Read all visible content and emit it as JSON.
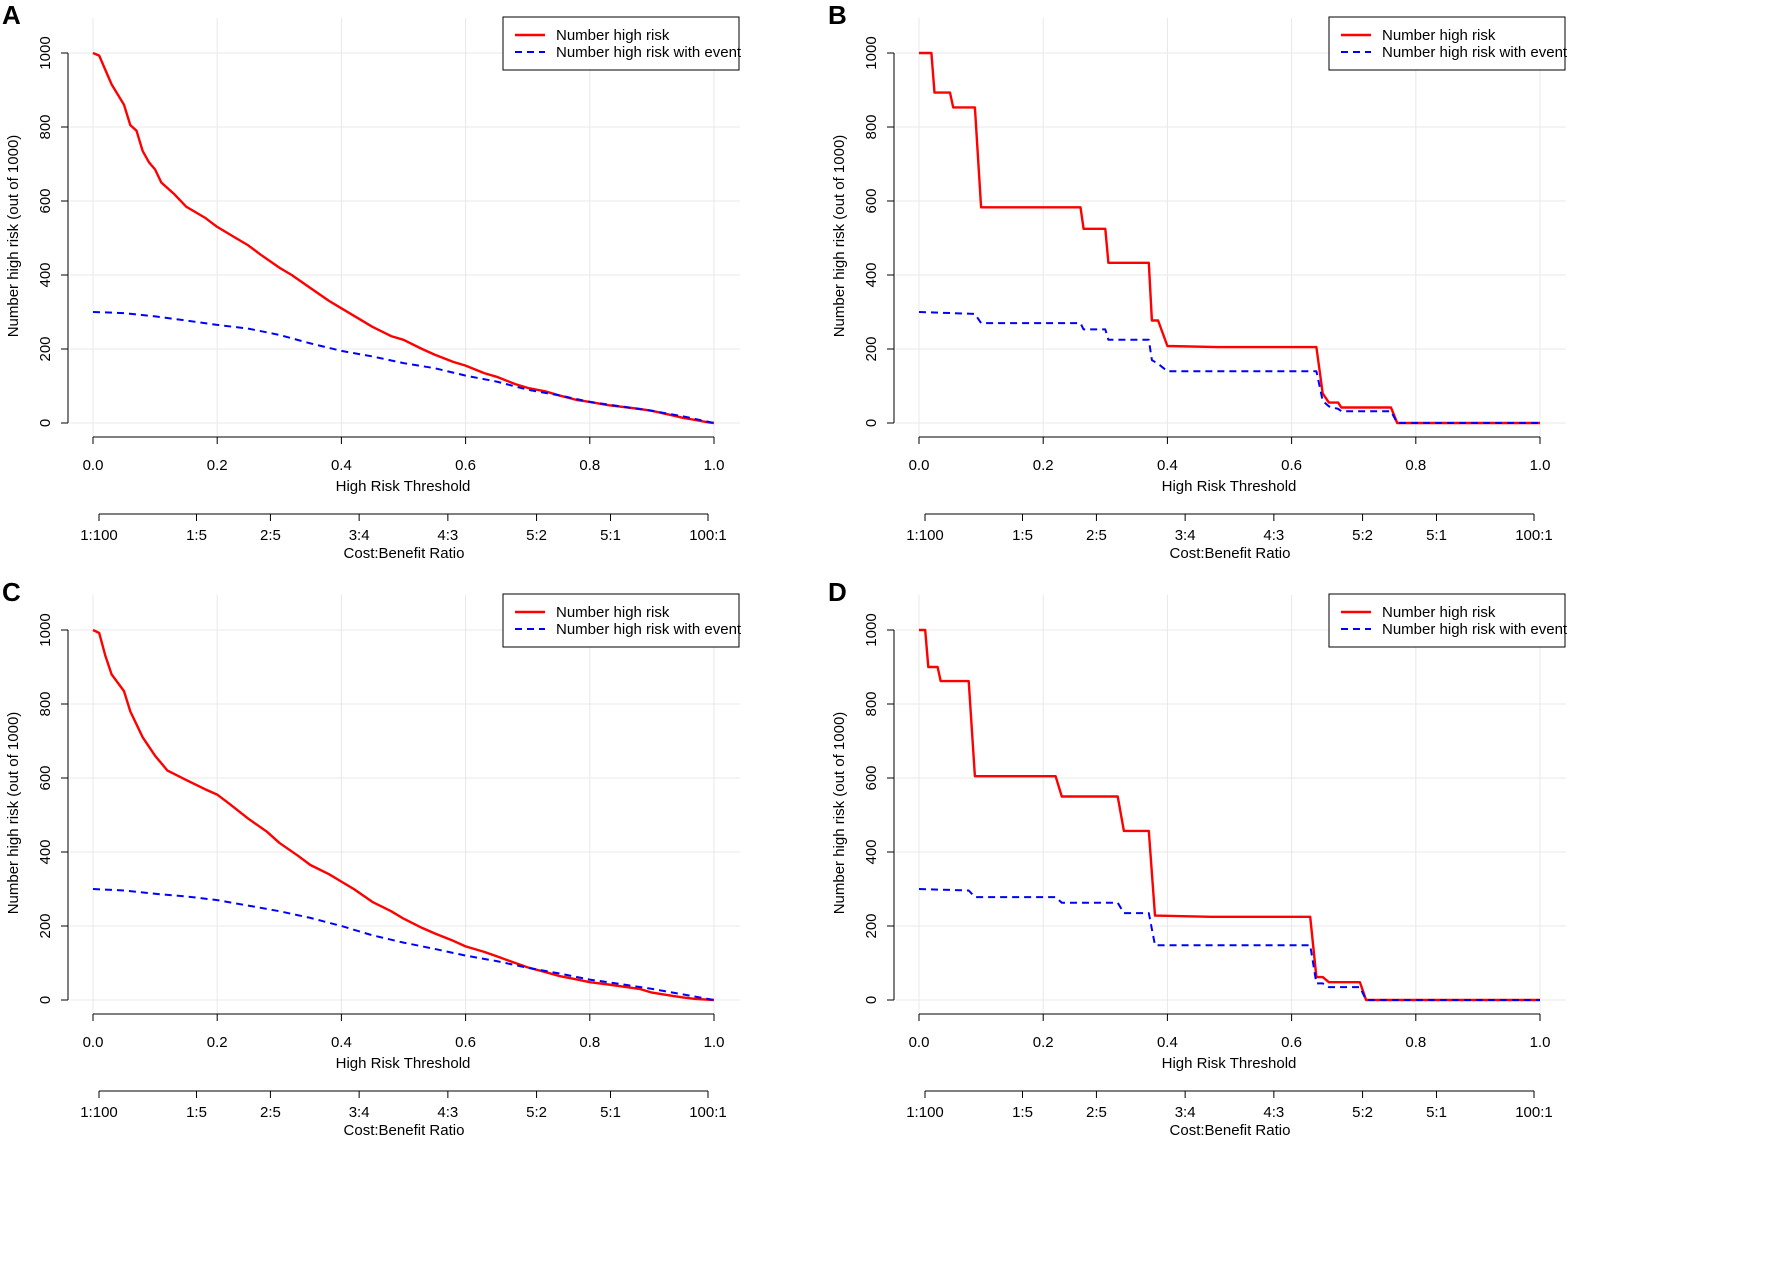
{
  "chart_data": [
    {
      "type": "line",
      "panel_label": "A",
      "xlabel": "High Risk Threshold",
      "ylabel": "Number high risk (out of 1000)",
      "xlim": [
        0,
        1
      ],
      "ylim": [
        0,
        1000
      ],
      "x_ticks": [
        "0.0",
        "0.2",
        "0.4",
        "0.6",
        "0.8",
        "1.0"
      ],
      "y_ticks": [
        "0",
        "200",
        "400",
        "600",
        "800",
        "1000"
      ],
      "secondary_axis": {
        "title": "Cost:Benefit Ratio",
        "ticks": [
          "1:100",
          "1:5",
          "2:5",
          "3:4",
          "4:3",
          "5:2",
          "5:1",
          "100:1"
        ]
      },
      "grid": true,
      "legend": {
        "position": "top-right",
        "entries": [
          "Number high risk",
          "Number high risk with event"
        ]
      },
      "series": [
        {
          "name": "Number high risk",
          "color": "#ff0000",
          "style": "solid",
          "x": [
            0,
            0.01,
            0.03,
            0.05,
            0.06,
            0.07,
            0.08,
            0.09,
            0.1,
            0.11,
            0.13,
            0.15,
            0.18,
            0.2,
            0.23,
            0.25,
            0.27,
            0.3,
            0.32,
            0.35,
            0.38,
            0.4,
            0.42,
            0.45,
            0.48,
            0.5,
            0.53,
            0.55,
            0.58,
            0.6,
            0.63,
            0.65,
            0.68,
            0.7,
            0.73,
            0.75,
            0.78,
            0.8,
            0.83,
            0.85,
            0.88,
            0.9,
            0.93,
            0.95,
            0.97,
            0.99,
            1.0
          ],
          "y": [
            1000,
            993,
            915,
            860,
            805,
            790,
            735,
            705,
            685,
            650,
            620,
            585,
            555,
            530,
            500,
            480,
            455,
            420,
            400,
            365,
            330,
            310,
            290,
            260,
            235,
            225,
            200,
            185,
            165,
            155,
            135,
            125,
            105,
            95,
            85,
            75,
            62,
            57,
            48,
            44,
            38,
            33,
            22,
            14,
            8,
            2,
            0
          ]
        },
        {
          "name": "Number high risk with event",
          "color": "#0000ff",
          "style": "dashed",
          "x": [
            0,
            0.05,
            0.1,
            0.15,
            0.2,
            0.25,
            0.3,
            0.35,
            0.4,
            0.45,
            0.5,
            0.55,
            0.6,
            0.65,
            0.7,
            0.75,
            0.8,
            0.85,
            0.9,
            0.95,
            1.0
          ],
          "y": [
            300,
            297,
            288,
            277,
            265,
            255,
            238,
            215,
            195,
            180,
            162,
            148,
            128,
            112,
            90,
            75,
            57,
            45,
            33,
            18,
            0
          ]
        }
      ]
    },
    {
      "type": "line",
      "panel_label": "B",
      "xlabel": "High Risk Threshold",
      "ylabel": "Number high risk (out of 1000)",
      "xlim": [
        0,
        1
      ],
      "ylim": [
        0,
        1000
      ],
      "x_ticks": [
        "0.0",
        "0.2",
        "0.4",
        "0.6",
        "0.8",
        "1.0"
      ],
      "y_ticks": [
        "0",
        "200",
        "400",
        "600",
        "800",
        "1000"
      ],
      "secondary_axis": {
        "title": "Cost:Benefit Ratio",
        "ticks": [
          "1:100",
          "1:5",
          "2:5",
          "3:4",
          "4:3",
          "5:2",
          "5:1",
          "100:1"
        ]
      },
      "grid": true,
      "legend": {
        "position": "top-right",
        "entries": [
          "Number high risk",
          "Number high risk with event"
        ]
      },
      "series": [
        {
          "name": "Number high risk",
          "color": "#ff0000",
          "style": "solid",
          "x": [
            0,
            0.02,
            0.025,
            0.05,
            0.055,
            0.09,
            0.1,
            0.26,
            0.265,
            0.3,
            0.305,
            0.37,
            0.375,
            0.385,
            0.4,
            0.48,
            0.64,
            0.65,
            0.66,
            0.675,
            0.68,
            0.76,
            0.77,
            1.0
          ],
          "y": [
            1000,
            1000,
            893,
            893,
            853,
            853,
            583,
            583,
            525,
            525,
            433,
            433,
            277,
            277,
            208,
            205,
            205,
            80,
            55,
            55,
            42,
            42,
            0,
            0
          ]
        },
        {
          "name": "Number high risk with event",
          "color": "#0000ff",
          "style": "dashed",
          "x": [
            0,
            0.09,
            0.1,
            0.26,
            0.265,
            0.3,
            0.305,
            0.37,
            0.375,
            0.385,
            0.4,
            0.64,
            0.65,
            0.66,
            0.675,
            0.68,
            0.76,
            0.77,
            1.0
          ],
          "y": [
            300,
            295,
            270,
            270,
            253,
            253,
            225,
            225,
            170,
            160,
            140,
            140,
            60,
            45,
            38,
            32,
            32,
            0,
            0
          ]
        }
      ]
    },
    {
      "type": "line",
      "panel_label": "C",
      "xlabel": "High Risk Threshold",
      "ylabel": "Number high risk (out of 1000)",
      "xlim": [
        0,
        1
      ],
      "ylim": [
        0,
        1000
      ],
      "x_ticks": [
        "0.0",
        "0.2",
        "0.4",
        "0.6",
        "0.8",
        "1.0"
      ],
      "y_ticks": [
        "0",
        "200",
        "400",
        "600",
        "800",
        "1000"
      ],
      "secondary_axis": {
        "title": "Cost:Benefit Ratio",
        "ticks": [
          "1:100",
          "1:5",
          "2:5",
          "3:4",
          "4:3",
          "5:2",
          "5:1",
          "100:1"
        ]
      },
      "grid": true,
      "legend": {
        "position": "top-right",
        "entries": [
          "Number high risk",
          "Number high risk with event"
        ]
      },
      "series": [
        {
          "name": "Number high risk",
          "color": "#ff0000",
          "style": "solid",
          "x": [
            0,
            0.01,
            0.02,
            0.03,
            0.05,
            0.06,
            0.08,
            0.1,
            0.12,
            0.15,
            0.18,
            0.2,
            0.22,
            0.25,
            0.28,
            0.3,
            0.33,
            0.35,
            0.38,
            0.4,
            0.42,
            0.45,
            0.48,
            0.5,
            0.53,
            0.55,
            0.58,
            0.6,
            0.63,
            0.65,
            0.68,
            0.7,
            0.73,
            0.75,
            0.78,
            0.8,
            0.83,
            0.85,
            0.88,
            0.9,
            0.93,
            0.95,
            0.97,
            1.0
          ],
          "y": [
            1000,
            992,
            930,
            880,
            835,
            780,
            710,
            660,
            620,
            595,
            570,
            555,
            530,
            490,
            455,
            425,
            390,
            365,
            340,
            320,
            300,
            265,
            240,
            220,
            195,
            180,
            160,
            145,
            130,
            118,
            100,
            88,
            75,
            65,
            55,
            48,
            42,
            37,
            30,
            20,
            12,
            7,
            3,
            0
          ]
        },
        {
          "name": "Number high risk with event",
          "color": "#0000ff",
          "style": "dashed",
          "x": [
            0,
            0.05,
            0.1,
            0.15,
            0.2,
            0.25,
            0.3,
            0.35,
            0.4,
            0.45,
            0.5,
            0.55,
            0.6,
            0.65,
            0.7,
            0.75,
            0.8,
            0.85,
            0.9,
            0.95,
            1.0
          ],
          "y": [
            300,
            296,
            287,
            280,
            270,
            255,
            240,
            222,
            200,
            175,
            155,
            138,
            120,
            105,
            87,
            72,
            55,
            43,
            30,
            15,
            0
          ]
        }
      ]
    },
    {
      "type": "line",
      "panel_label": "D",
      "xlabel": "High Risk Threshold",
      "ylabel": "Number high risk (out of 1000)",
      "xlim": [
        0,
        1
      ],
      "ylim": [
        0,
        1000
      ],
      "x_ticks": [
        "0.0",
        "0.2",
        "0.4",
        "0.6",
        "0.8",
        "1.0"
      ],
      "y_ticks": [
        "0",
        "200",
        "400",
        "600",
        "800",
        "1000"
      ],
      "secondary_axis": {
        "title": "Cost:Benefit Ratio",
        "ticks": [
          "1:100",
          "1:5",
          "2:5",
          "3:4",
          "4:3",
          "5:2",
          "5:1",
          "100:1"
        ]
      },
      "grid": true,
      "legend": {
        "position": "top-right",
        "entries": [
          "Number high risk",
          "Number high risk with event"
        ]
      },
      "series": [
        {
          "name": "Number high risk",
          "color": "#ff0000",
          "style": "solid",
          "x": [
            0,
            0.01,
            0.015,
            0.03,
            0.035,
            0.08,
            0.09,
            0.22,
            0.23,
            0.32,
            0.33,
            0.37,
            0.38,
            0.47,
            0.63,
            0.64,
            0.65,
            0.66,
            0.71,
            0.72,
            1.0
          ],
          "y": [
            1000,
            1000,
            900,
            900,
            862,
            862,
            605,
            605,
            550,
            550,
            457,
            457,
            228,
            225,
            225,
            62,
            62,
            48,
            48,
            0,
            0
          ]
        },
        {
          "name": "Number high risk with event",
          "color": "#0000ff",
          "style": "dashed",
          "x": [
            0,
            0.08,
            0.09,
            0.22,
            0.23,
            0.32,
            0.33,
            0.37,
            0.38,
            0.63,
            0.64,
            0.65,
            0.66,
            0.71,
            0.72,
            1.0
          ],
          "y": [
            300,
            296,
            278,
            278,
            263,
            263,
            235,
            235,
            148,
            148,
            45,
            45,
            35,
            35,
            0,
            0
          ]
        }
      ]
    }
  ]
}
